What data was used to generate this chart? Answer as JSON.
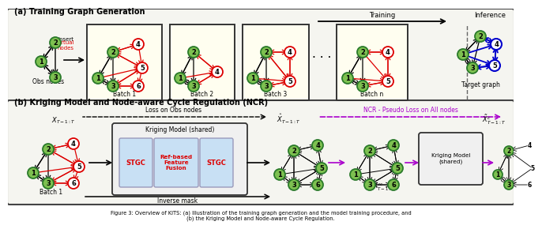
{
  "fig_width": 6.4,
  "fig_height": 2.61,
  "bg_color": "#FFFFFF",
  "panel_a_title": "(a) Training Graph Generation",
  "panel_b_title": "(b) Kriging Model and Node-aware Cycle Regulation (NCR)",
  "node_green_face": "#7DC050",
  "node_green_edge": "#2A7A2A",
  "node_red_face": "#FFFFFF",
  "node_red_edge": "#DD0000",
  "node_blue_face": "#FFFFFF",
  "node_blue_edge": "#0000CC",
  "training_label": "Training",
  "inference_label": "Inference",
  "obs_nodes_label": "Obs nodes",
  "insert_label": "Insert\nvirtual\nnodes",
  "batch1_label": "Batch 1",
  "batch2_label": "Batch 2",
  "batch3_label": "Batch 3",
  "batchn_label": "Batch n",
  "target_graph_label": "Target graph",
  "loss_obs_label": "Loss on Obs nodes",
  "ncr_label": "NCR - Pseudo Loss on All nodes",
  "inverse_mask_label": "Inverse mask",
  "kriging_model_label": "Kriging Model (shared)",
  "kriging_model2_label": "Kriging Model\n(shared)",
  "stgc_label": "STGC",
  "ref_label": "Ref-based\nFeature\nFusion",
  "batch1b_label": "Batch 1",
  "caption": "Figure 3: Overview of KITS: (a) Illustration of the training graph generation and the model training procedure, and\n(b) the Kriging Model and Node-aware Cycle Regulation."
}
